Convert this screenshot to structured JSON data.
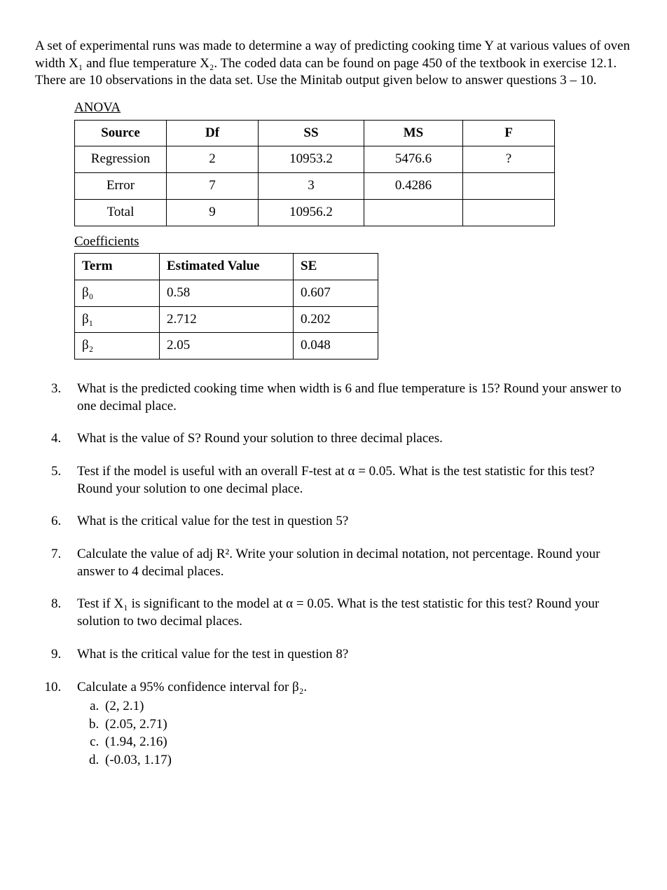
{
  "intro": "A set of experimental runs was made to determine a way of predicting cooking time Y at various values of oven width X₁ and flue temperature X₂. The coded data can be found on page 450 of the textbook in exercise 12.1. There are 10 observations in the data set. Use the Minitab output given below to answer questions 3 – 10.",
  "anova": {
    "heading": "ANOVA",
    "columns": [
      "Source",
      "Df",
      "SS",
      "MS",
      "F"
    ],
    "rows": [
      [
        "Regression",
        "2",
        "10953.2",
        "5476.6",
        "?"
      ],
      [
        "Error",
        "7",
        "3",
        "0.4286",
        ""
      ],
      [
        "Total",
        "9",
        "10956.2",
        "",
        ""
      ]
    ]
  },
  "coefficients": {
    "heading": "Coefficients",
    "columns": [
      "Term",
      "Estimated Value",
      "SE"
    ],
    "rows": [
      [
        "β₀",
        "0.58",
        "0.607"
      ],
      [
        "β₁",
        "2.712",
        "0.202"
      ],
      [
        "β₂",
        "2.05",
        "0.048"
      ]
    ]
  },
  "questions": {
    "start": 3,
    "items": [
      "What is the predicted cooking time when width is 6 and flue temperature is 15? Round your answer to one decimal place.",
      "What is the value of S? Round your solution to three decimal places.",
      "Test if the model is useful with an overall F-test at α = 0.05. What is the test statistic for this test? Round your solution to one decimal place.",
      "What is the critical value for the test in question 5?",
      "Calculate the value of adj R². Write your solution in decimal notation, not percentage. Round your answer to 4 decimal places.",
      "Test if X₁ is significant to the model at α = 0.05. What is the test statistic for this test? Round your solution to two decimal places.",
      "What is the critical value for the test in question 8?",
      "Calculate a 95% confidence interval for β₂."
    ]
  },
  "q10_options": [
    "(2, 2.1)",
    "(2.05, 2.71)",
    "(1.94, 2.16)",
    "(-0.03, 1.17)"
  ]
}
